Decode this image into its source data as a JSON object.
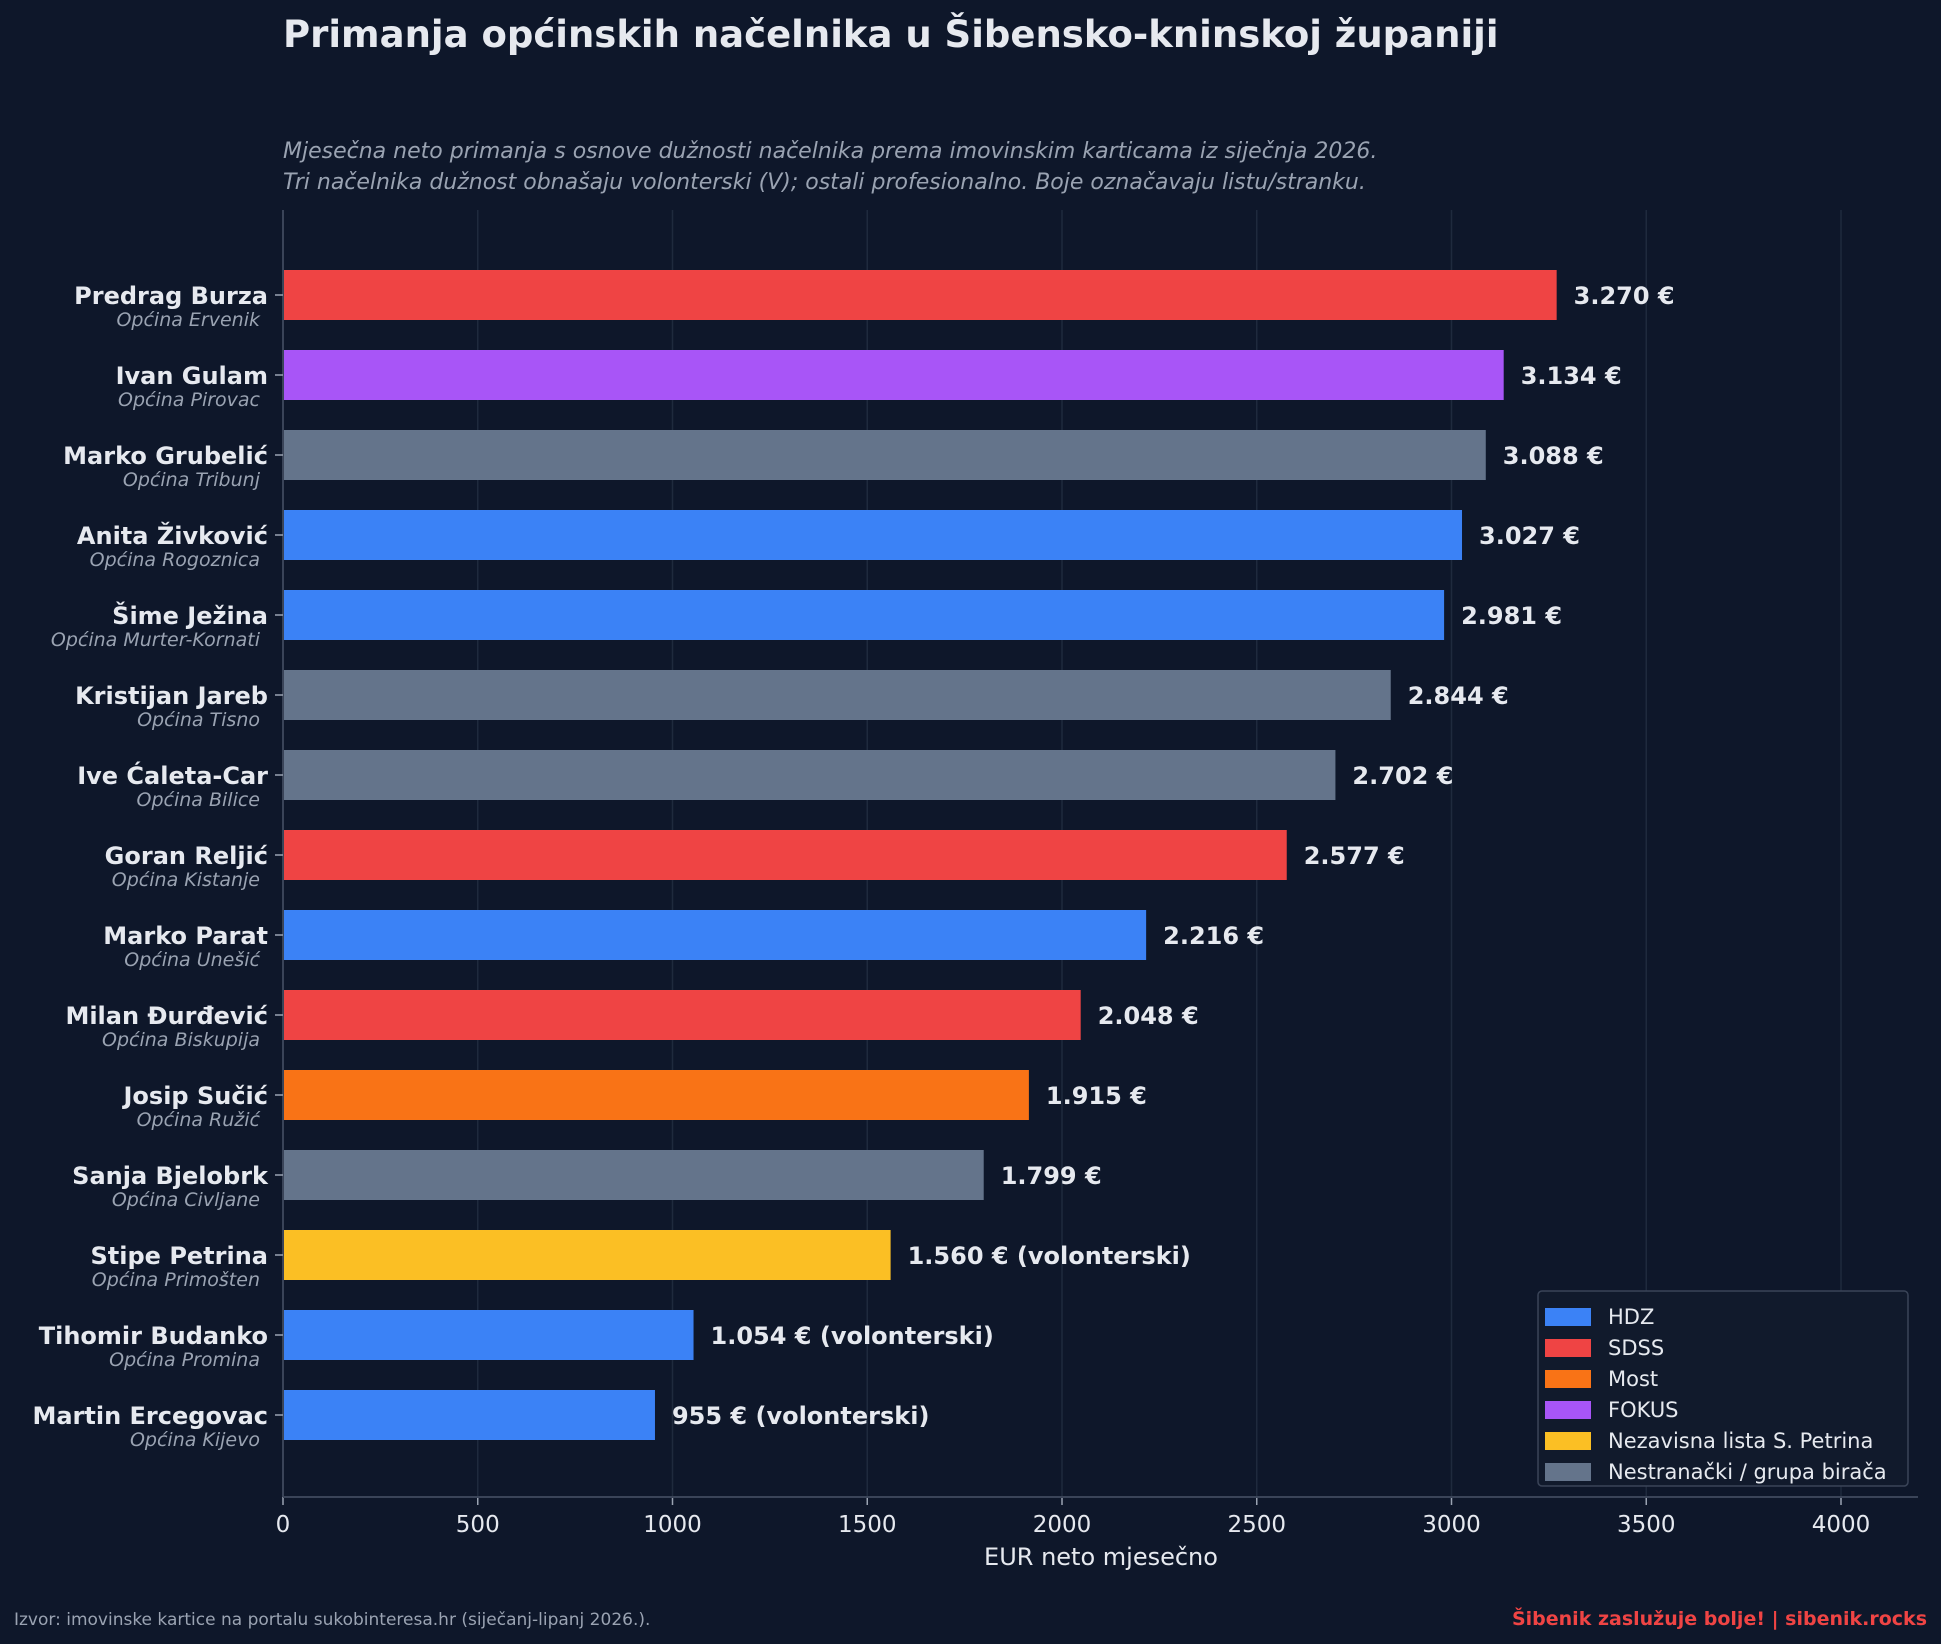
{
  "chart_data": {
    "type": "bar",
    "orientation": "horizontal",
    "title": "Primanja općinskih načelnika u Šibensko-kninskoj županiji",
    "subtitle": [
      "Mjesečna neto primanja s osnove dužnosti načelnika prema imovinskim karticama iz siječnja 2026.",
      "Tri načelnika dužnost obnašaju volonterski (V); ostali profesionalno. Boje označavaju listu/stranku."
    ],
    "xlabel": "EUR neto mjesečno",
    "xlim": [
      0,
      4200
    ],
    "xticks": [
      0,
      500,
      1000,
      1500,
      2000,
      2500,
      3000,
      3500,
      4000
    ],
    "grid": "vertical",
    "legend_position": "bottom-right",
    "bars": [
      {
        "name": "Predrag Burza",
        "municipality": "Općina Ervenik",
        "value": 3270,
        "label": "3.270 €",
        "party": "SDSS"
      },
      {
        "name": "Ivan Gulam",
        "municipality": "Općina Pirovac",
        "value": 3134,
        "label": "3.134 €",
        "party": "FOKUS"
      },
      {
        "name": "Marko Grubelić",
        "municipality": "Općina Tribunj",
        "value": 3088,
        "label": "3.088 €",
        "party": "Nestranački / grupa birača"
      },
      {
        "name": "Anita Živković",
        "municipality": "Općina Rogoznica",
        "value": 3027,
        "label": "3.027 €",
        "party": "HDZ"
      },
      {
        "name": "Šime Ježina",
        "municipality": "Općina Murter-Kornati",
        "value": 2981,
        "label": "2.981 €",
        "party": "HDZ"
      },
      {
        "name": "Kristijan Jareb",
        "municipality": "Općina Tisno",
        "value": 2844,
        "label": "2.844 €",
        "party": "Nestranački / grupa birača"
      },
      {
        "name": "Ive Ćaleta-Car",
        "municipality": "Općina Bilice",
        "value": 2702,
        "label": "2.702 €",
        "party": "Nestranački / grupa birača"
      },
      {
        "name": "Goran Reljić",
        "municipality": "Općina Kistanje",
        "value": 2577,
        "label": "2.577 €",
        "party": "SDSS"
      },
      {
        "name": "Marko Parat",
        "municipality": "Općina Unešić",
        "value": 2216,
        "label": "2.216 €",
        "party": "HDZ"
      },
      {
        "name": "Milan Đurđević",
        "municipality": "Općina Biskupija",
        "value": 2048,
        "label": "2.048 €",
        "party": "SDSS"
      },
      {
        "name": "Josip Sučić",
        "municipality": "Općina Ružić",
        "value": 1915,
        "label": "1.915 €",
        "party": "Most"
      },
      {
        "name": "Sanja Bjelobrk",
        "municipality": "Općina Civljane",
        "value": 1799,
        "label": "1.799 €",
        "party": "Nestranački / grupa birača"
      },
      {
        "name": "Stipe Petrina",
        "municipality": "Općina Primošten",
        "value": 1560,
        "label": "1.560 €  (volonterski)",
        "party": "Nezavisna lista S. Petrina"
      },
      {
        "name": "Tihomir Budanko",
        "municipality": "Općina Promina",
        "value": 1054,
        "label": "1.054 €  (volonterski)",
        "party": "HDZ"
      },
      {
        "name": "Martin Ercegovac",
        "municipality": "Općina Kijevo",
        "value": 955,
        "label": "955 €  (volonterski)",
        "party": "HDZ"
      }
    ],
    "legend": [
      {
        "name": "HDZ",
        "color": "#3b82f6"
      },
      {
        "name": "SDSS",
        "color": "#ef4444"
      },
      {
        "name": "Most",
        "color": "#f97316"
      },
      {
        "name": "FOKUS",
        "color": "#a855f7"
      },
      {
        "name": "Nezavisna lista S. Petrina",
        "color": "#fbbf24"
      },
      {
        "name": "Nestranački / grupa birača",
        "color": "#64748b"
      }
    ]
  },
  "footer": {
    "source": "Izvor: imovinske kartice na portalu sukobinteresa.hr (siječanj-lipanj 2026.).",
    "brand": "Šibenik zaslužuje bolje!  |  sibenik.rocks"
  },
  "colors": {
    "background": "#0e172a",
    "grid": "#1f2a3d",
    "text": "#e6e9ef",
    "muted": "#9aa3b2"
  }
}
